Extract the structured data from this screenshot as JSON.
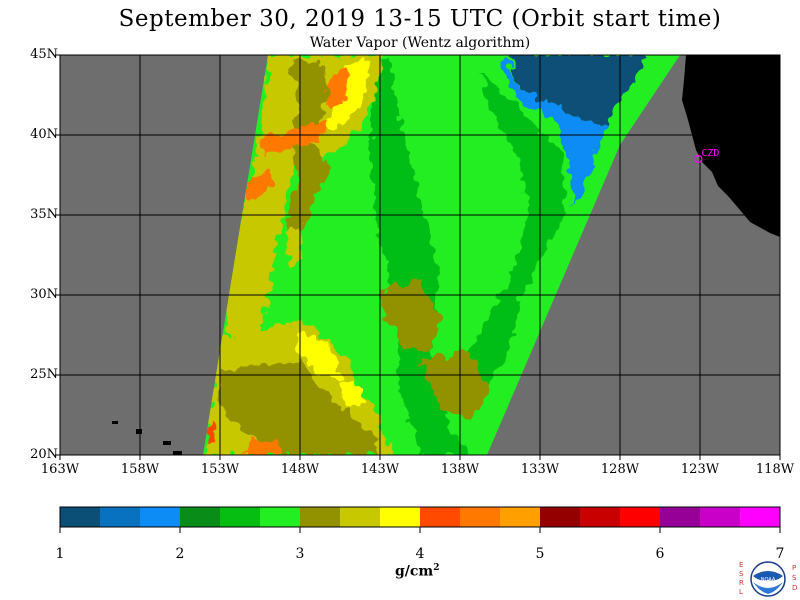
{
  "title": "September 30, 2019  13-15 UTC  (Orbit start time)",
  "subtitle": "Water Vapor (Wentz algorithm)",
  "map": {
    "lat_labels": [
      "45N",
      "40N",
      "35N",
      "30N",
      "25N",
      "20N"
    ],
    "lat_values": [
      45,
      40,
      35,
      30,
      25,
      20
    ],
    "lon_labels": [
      "163W",
      "158W",
      "153W",
      "148W",
      "143W",
      "138W",
      "133W",
      "128W",
      "123W",
      "118W"
    ],
    "lon_values": [
      -163,
      -158,
      -153,
      -148,
      -143,
      -138,
      -133,
      -128,
      -123,
      -118
    ],
    "extent": {
      "lon_min": -163,
      "lon_max": -118,
      "lat_min": 20,
      "lat_max": 45
    },
    "station_label": "CZD",
    "colors": {
      "nodata": "#6e6e6e",
      "land": "#000000",
      "grid": "#000000",
      "station": "#ff00ff"
    }
  },
  "colorbar": {
    "tick_labels": [
      "1",
      "2",
      "3",
      "4",
      "5",
      "6",
      "7"
    ],
    "units_base": "g/cm",
    "units_exp": "2",
    "colors": [
      "#0b4f77",
      "#0871c0",
      "#0e8cf5",
      "#0a8c18",
      "#06be12",
      "#22ee22",
      "#929200",
      "#c8c800",
      "#ffff00",
      "#ff4a00",
      "#ff7800",
      "#ffa000",
      "#940000",
      "#c80000",
      "#ff0000",
      "#960096",
      "#c800c8",
      "#ff00ff"
    ]
  },
  "logo": {
    "left_letters": "ESRL",
    "right_letters": "PSD",
    "center_text": "NOAA"
  }
}
